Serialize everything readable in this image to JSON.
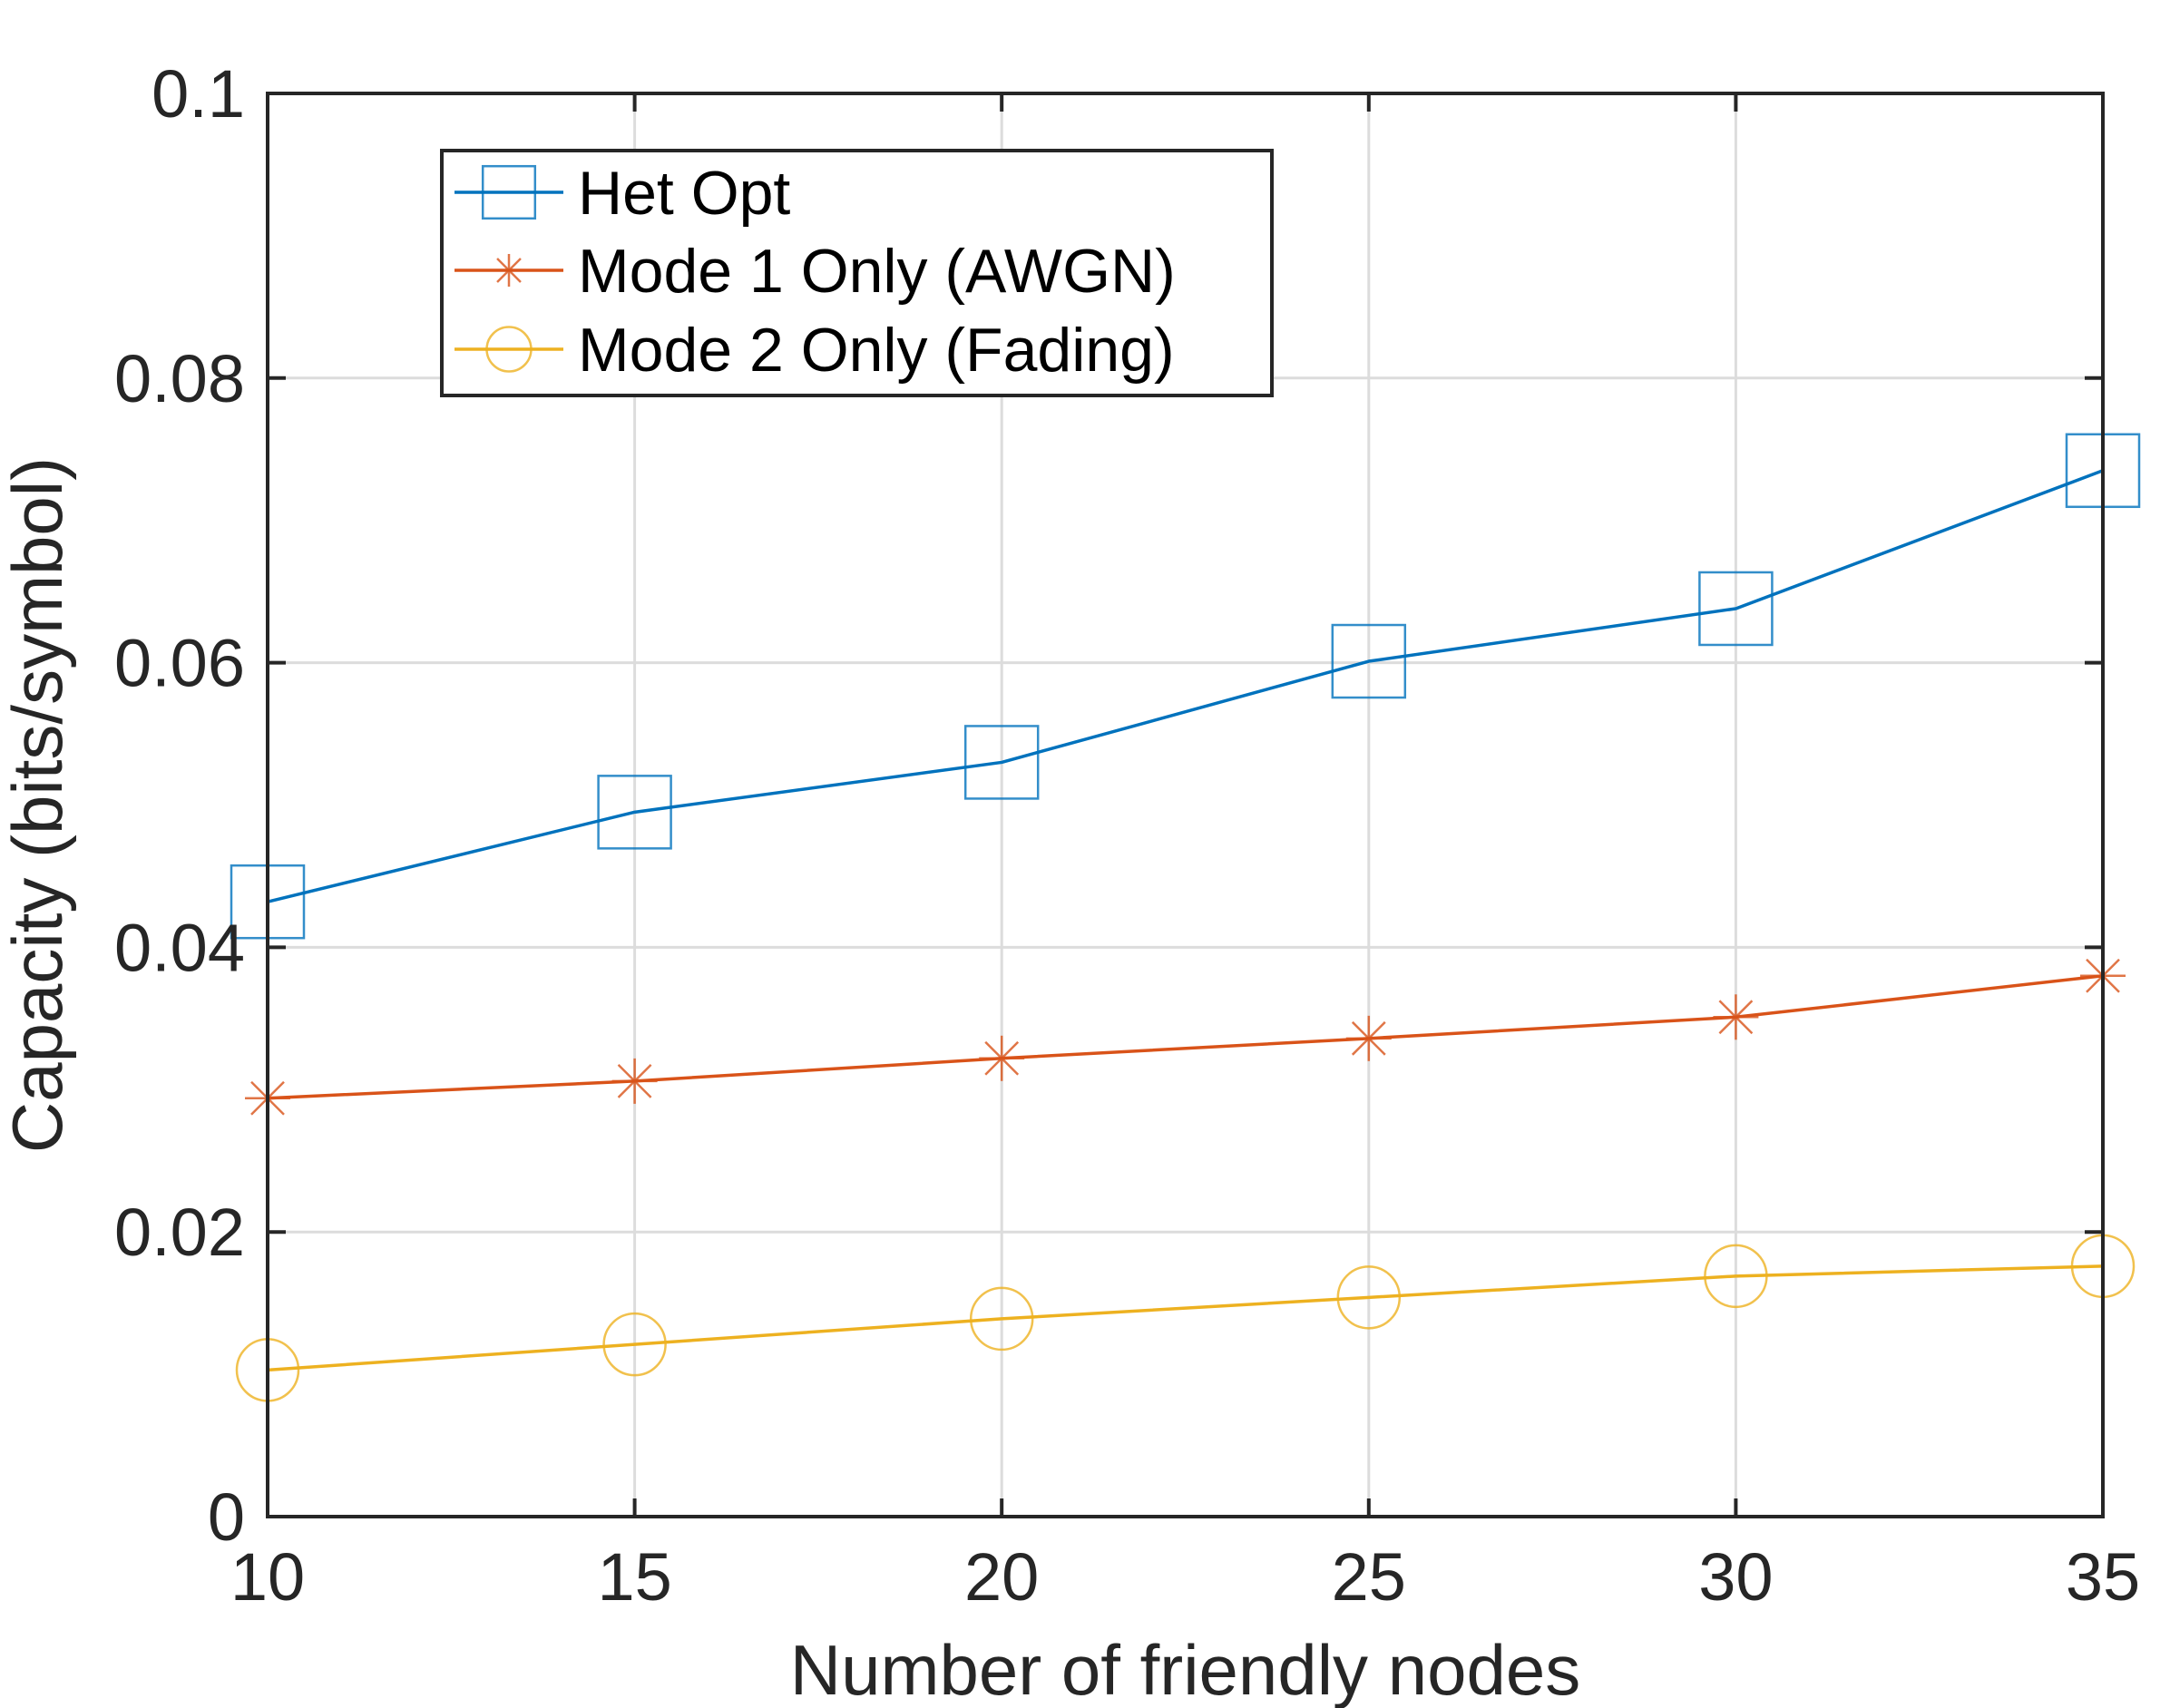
{
  "chart_data": {
    "type": "line",
    "title": "",
    "xlabel": "Number of friendly nodes",
    "ylabel": "Capacity (bits/symbol)",
    "xlim": [
      10,
      35
    ],
    "ylim": [
      0,
      0.1
    ],
    "grid": true,
    "legend_position": "top-left",
    "x": [
      10,
      15,
      20,
      25,
      30,
      35
    ],
    "x_ticks": [
      10,
      15,
      20,
      25,
      30,
      35
    ],
    "x_tick_labels": [
      "10",
      "15",
      "20",
      "25",
      "30",
      "35"
    ],
    "y_ticks": [
      0,
      0.02,
      0.04,
      0.06,
      0.08,
      0.1
    ],
    "y_tick_labels": [
      "0",
      "0.02",
      "0.04",
      "0.06",
      "0.08",
      "0.1"
    ],
    "series": [
      {
        "name": "Het Opt",
        "marker": "square",
        "color": "#0072BD",
        "values": [
          0.0432,
          0.0495,
          0.053,
          0.0601,
          0.0638,
          0.0735
        ]
      },
      {
        "name": "Mode 1 Only (AWGN)",
        "marker": "asterisk",
        "color": "#D95319",
        "values": [
          0.0294,
          0.0306,
          0.0322,
          0.0336,
          0.0351,
          0.038
        ]
      },
      {
        "name": "Mode 2 Only (Fading)",
        "marker": "circle",
        "color": "#EDB120",
        "values": [
          0.0103,
          0.0121,
          0.0139,
          0.0154,
          0.0169,
          0.0176
        ]
      }
    ]
  }
}
